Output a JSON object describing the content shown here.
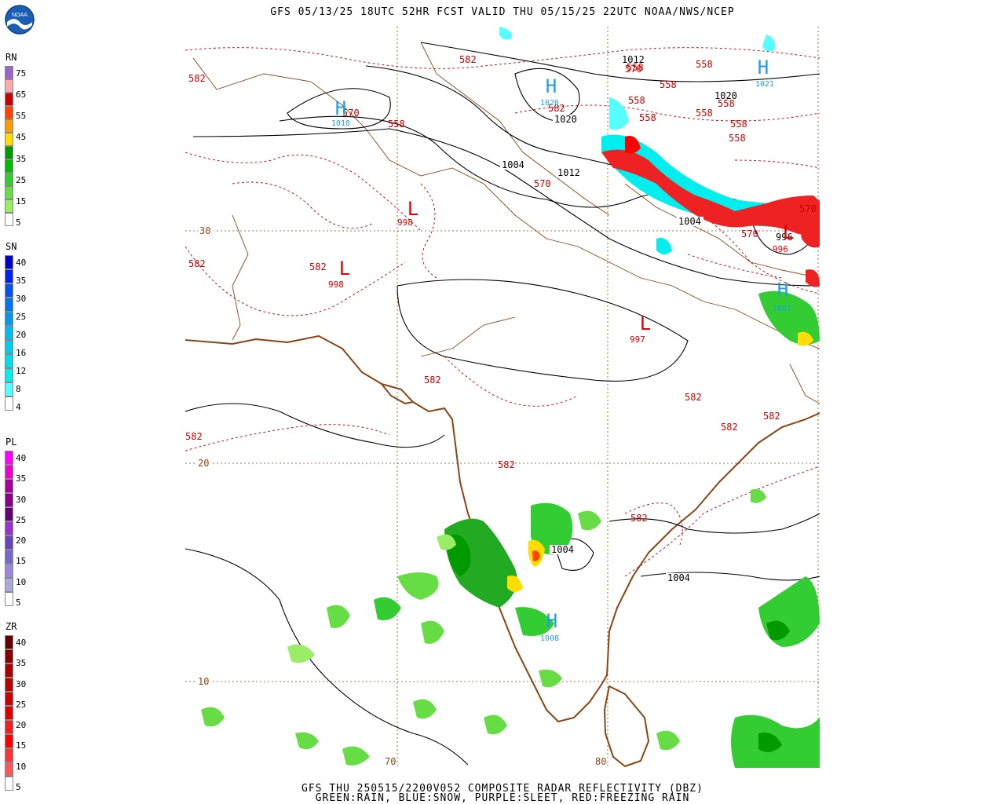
{
  "header": {
    "title": "GFS 05/13/25 18UTC 52HR FCST VALID THU 05/15/25 22UTC NOAA/NWS/NCEP",
    "logo_text": "NOAA"
  },
  "footer": {
    "line1": "GFS THU 250515/2200V052 COMPOSITE RADAR REFLECTIVITY (DBZ)",
    "line2": "GREEN:RAIN, BLUE:SNOW, PURPLE:SLEET, RED:FREEZING RAIN"
  },
  "legends": [
    {
      "label": "RN",
      "ticks": [
        "75",
        "65",
        "55",
        "45",
        "35",
        "25",
        "15",
        "5"
      ],
      "colors": [
        "#9966cc",
        "#ffaaaa",
        "#cc0000",
        "#ff4400",
        "#ff9900",
        "#ffdd00",
        "#009900",
        "#00bb00",
        "#33cc33",
        "#66dd44",
        "#99ee66",
        "#ffffff"
      ]
    },
    {
      "label": "SN",
      "ticks": [
        "40",
        "35",
        "30",
        "25",
        "20",
        "16",
        "12",
        "8",
        "4"
      ],
      "colors": [
        "#0000cc",
        "#0022ee",
        "#0055ee",
        "#0077ee",
        "#0099ee",
        "#00bbee",
        "#00ccee",
        "#00ddee",
        "#00eeee",
        "#55ffff",
        "#ffffff"
      ]
    },
    {
      "label": "PL",
      "ticks": [
        "40",
        "35",
        "30",
        "25",
        "20",
        "15",
        "10",
        "5"
      ],
      "colors": [
        "#ff00ff",
        "#ee00cc",
        "#aa0099",
        "#880088",
        "#660077",
        "#9933cc",
        "#6644bb",
        "#7766cc",
        "#9988dd",
        "#aaaadd",
        "#ffffff"
      ]
    },
    {
      "label": "ZR",
      "ticks": [
        "40",
        "35",
        "30",
        "25",
        "20",
        "15",
        "10",
        "5"
      ],
      "colors": [
        "#660000",
        "#880000",
        "#aa0000",
        "#bb0000",
        "#cc0000",
        "#dd0000",
        "#ee2222",
        "#ff0000",
        "#ff3333",
        "#ff5555",
        "#ffffff"
      ]
    }
  ],
  "map": {
    "lat_labels": [
      "30",
      "20",
      "10"
    ],
    "lon_labels": [
      "70",
      "80"
    ],
    "highs": [
      {
        "label": "H",
        "value": "1018"
      },
      {
        "label": "H",
        "value": "1026"
      },
      {
        "label": "H",
        "value": "1021"
      },
      {
        "label": "H",
        "value": "1007"
      },
      {
        "label": "H",
        "value": "1008"
      }
    ],
    "lows": [
      {
        "label": "L",
        "value": "998"
      },
      {
        "label": "L",
        "value": "998"
      },
      {
        "label": "L",
        "value": "997"
      },
      {
        "label": "L",
        "value": "996"
      }
    ],
    "isobar_labels": [
      "1012",
      "1020",
      "1020",
      "1004",
      "1012",
      "1004",
      "996",
      "1004",
      "1004"
    ],
    "thickness_labels": [
      "582",
      "582",
      "570",
      "558",
      "558",
      "570",
      "558",
      "558",
      "558",
      "558",
      "558",
      "558",
      "558",
      "558",
      "570",
      "570",
      "582",
      "582",
      "582",
      "582",
      "582",
      "582",
      "582",
      "582",
      "582",
      "582",
      "570"
    ],
    "colors": {
      "isobar": "#000000",
      "thickness": "#cc0000",
      "coast": "#8b4513",
      "high": "#1e9ee6",
      "low": "#e00000",
      "grid": "#8b4513"
    }
  }
}
